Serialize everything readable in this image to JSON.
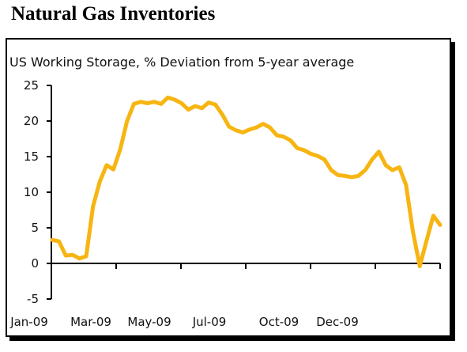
{
  "page": {
    "title": "Natural Gas Inventories"
  },
  "chart_data": {
    "type": "line",
    "title": "US Working Storage, % Deviation from 5-year average",
    "xlabel": "",
    "ylabel": "",
    "ylim": [
      -5,
      25
    ],
    "yticks": [
      25,
      20,
      15,
      10,
      5,
      0,
      -5
    ],
    "xtick_labels": [
      "Jan-09",
      "Mar-09",
      "May-09",
      "Jul-09",
      "Oct-09",
      "Dec-09"
    ],
    "grid": false,
    "line_color": "#F7B512",
    "x": [
      "Jan-09",
      "Jan-09",
      "Jan-09",
      "Jan-09",
      "Jan-09",
      "Feb-09",
      "Feb-09",
      "Feb-09",
      "Feb-09",
      "Mar-09",
      "Mar-09",
      "Mar-09",
      "Mar-09",
      "Apr-09",
      "Apr-09",
      "Apr-09",
      "Apr-09",
      "May-09",
      "May-09",
      "May-09",
      "May-09",
      "May-09",
      "Jun-09",
      "Jun-09",
      "Jun-09",
      "Jun-09",
      "Jul-09",
      "Jul-09",
      "Jul-09",
      "Jul-09",
      "Aug-09",
      "Aug-09",
      "Aug-09",
      "Aug-09",
      "Sep-09",
      "Sep-09",
      "Sep-09",
      "Sep-09",
      "Oct-09",
      "Oct-09",
      "Oct-09",
      "Oct-09",
      "Oct-09",
      "Nov-09",
      "Nov-09",
      "Nov-09",
      "Nov-09",
      "Dec-09",
      "Dec-09",
      "Dec-09",
      "Dec-09",
      "Jan-10",
      "Jan-10",
      "Jan-10",
      "Jan-10",
      "Feb-10",
      "Feb-10",
      "Feb-10"
    ],
    "series": [
      {
        "values": [
          3.3,
          3.1,
          1.1,
          1.2,
          0.7,
          1.0,
          8.0,
          11.5,
          13.8,
          13.2,
          16.0,
          20.0,
          22.4,
          22.7,
          22.5,
          22.7,
          22.4,
          23.3,
          23.0,
          22.5,
          21.6,
          22.1,
          21.8,
          22.6,
          22.3,
          20.9,
          19.2,
          18.7,
          18.4,
          18.8,
          19.1,
          19.6,
          19.1,
          18.0,
          17.8,
          17.3,
          16.2,
          15.9,
          15.4,
          15.1,
          14.6,
          13.1,
          12.4,
          12.3,
          12.1,
          12.3,
          13.1,
          14.6,
          15.7,
          13.8,
          13.1,
          13.5,
          11.0,
          4.5,
          -0.4,
          3.2,
          6.7,
          5.4
        ]
      }
    ]
  }
}
